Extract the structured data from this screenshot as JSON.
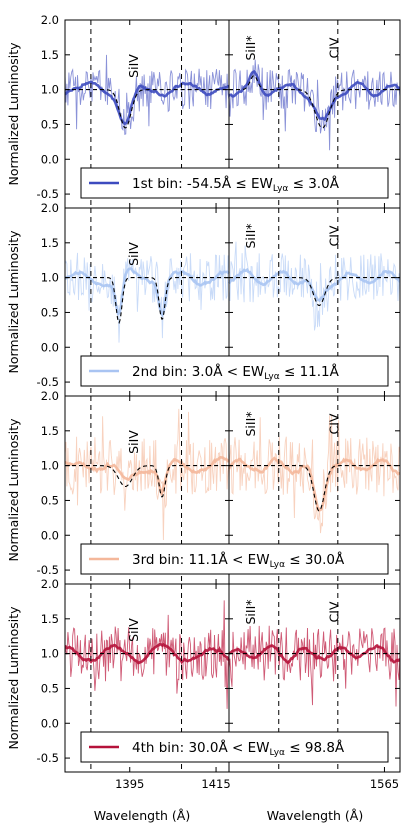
{
  "chart_data": {
    "type": "line",
    "ylabel": "Normalized Luminosity",
    "xlabel": "Wavelength (Å)",
    "ylim": [
      -0.7,
      2.0
    ],
    "y_ticks": [
      "-0.5",
      "0.0",
      "0.5",
      "1.0",
      "1.5",
      "2.0"
    ],
    "subplots": [
      {
        "xlim": [
          1380,
          1418
        ],
        "x_ticks": [
          "1395",
          "1415"
        ],
        "x_tick_values": [
          1395,
          1415
        ],
        "vlines": [
          1386,
          1407
        ],
        "line": "SiIV",
        "line_x": 1396
      },
      {
        "xlim": [
          1515,
          1570
        ],
        "x_ticks": [
          "1565"
        ],
        "x_tick_values": [
          1565
        ],
        "vlines": [
          1531,
          1550
        ],
        "lines": [
          {
            "name": "SiII*",
            "x": 1522
          },
          {
            "name": "CIV",
            "x": 1549
          }
        ]
      }
    ],
    "series": [
      {
        "label": "1st bin: -54.5Å ≤ EW",
        "range_low": "-54.5Å",
        "range_high": "3.0Å",
        "rel_low": "≤",
        "rel_high": "≤",
        "ordinal": "1st bin:",
        "color": "#3d4bbf",
        "light": "#8a92d8",
        "model_a": [
          {
            "c": 1394,
            "d": 0.55,
            "w": 1.3
          }
        ],
        "model_b": [
          {
            "c": 1523,
            "d": -0.2,
            "w": 1.2
          },
          {
            "c": 1545,
            "d": 0.55,
            "w": 2.3
          }
        ],
        "noise_amp": 0.3
      },
      {
        "label": "2nd bin: 3.0Å < EW",
        "range_low": "3.0Å",
        "range_high": "11.1Å",
        "rel_low": "<",
        "rel_high": "≤",
        "ordinal": "2nd bin:",
        "color": "#a9c4f2",
        "light": "#c9dbf8",
        "model_a": [
          {
            "c": 1392.5,
            "d": 0.65,
            "w": 0.7
          },
          {
            "c": 1402.5,
            "d": 0.6,
            "w": 0.7
          }
        ],
        "model_b": [
          {
            "c": 1544,
            "d": 0.4,
            "w": 1.8
          }
        ],
        "noise_amp": 0.36
      },
      {
        "label": "3rd bin: 11.1Å < EW",
        "range_low": "11.1Å",
        "range_high": "30.0Å",
        "rel_low": "<",
        "rel_high": "≤",
        "ordinal": "3rd bin:",
        "color": "#f4b79a",
        "light": "#f8d2bf",
        "model_a": [
          {
            "c": 1394,
            "d": 0.3,
            "w": 1.6
          },
          {
            "c": 1402.5,
            "d": 0.45,
            "w": 0.7
          }
        ],
        "model_b": [
          {
            "c": 1544,
            "d": 0.65,
            "w": 1.7
          }
        ],
        "noise_amp": 0.42
      },
      {
        "label": "4th bin: 30.0Å < EW",
        "range_low": "30.0Å",
        "range_high": "98.8Å",
        "rel_low": "<",
        "rel_high": "≤",
        "ordinal": "4th bin:",
        "color": "#b5123a",
        "light": "#cf5a75",
        "model_a": [],
        "model_b": [],
        "noise_amp": 0.4
      }
    ],
    "ew_symbol": "EW",
    "ew_subscript": "Lyα"
  }
}
